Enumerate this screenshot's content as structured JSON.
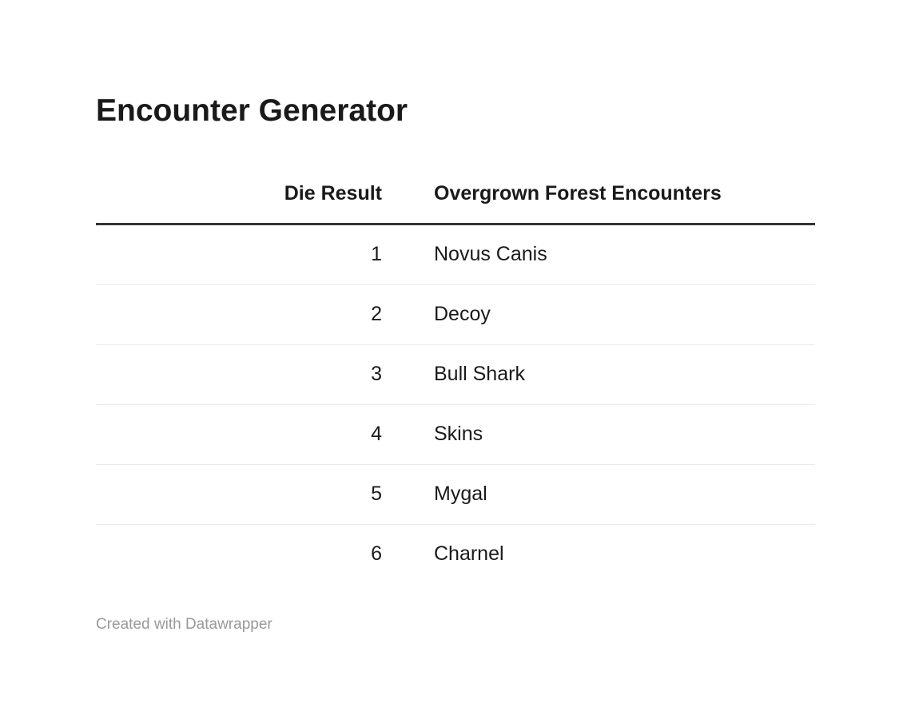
{
  "header": {
    "title": "Encounter Generator"
  },
  "table": {
    "columns": [
      "Die Result",
      "Overgrown Forest Encounters"
    ],
    "rows": [
      {
        "die": "1",
        "encounter": "Novus Canis"
      },
      {
        "die": "2",
        "encounter": "Decoy"
      },
      {
        "die": "3",
        "encounter": "Bull Shark"
      },
      {
        "die": "4",
        "encounter": "Skins"
      },
      {
        "die": "5",
        "encounter": "Mygal"
      },
      {
        "die": "6",
        "encounter": "Charnel"
      }
    ]
  },
  "footer": {
    "credit": "Created with Datawrapper"
  },
  "colors": {
    "text": "#1a1a1a",
    "header_border": "#333333",
    "row_divider": "#ebebeb",
    "credit_gray": "#999999",
    "background": "#ffffff"
  },
  "chart_data": {
    "type": "table",
    "title": "Encounter Generator",
    "columns": [
      "Die Result",
      "Overgrown Forest Encounters"
    ],
    "rows": [
      [
        1,
        "Novus Canis"
      ],
      [
        2,
        "Decoy"
      ],
      [
        3,
        "Bull Shark"
      ],
      [
        4,
        "Skins"
      ],
      [
        5,
        "Mygal"
      ],
      [
        6,
        "Charnel"
      ]
    ],
    "notes": "Datawrapper table embed; first column right-aligned numeric die results 1-6, second column left-aligned encounter names; no bottom border after last row"
  }
}
